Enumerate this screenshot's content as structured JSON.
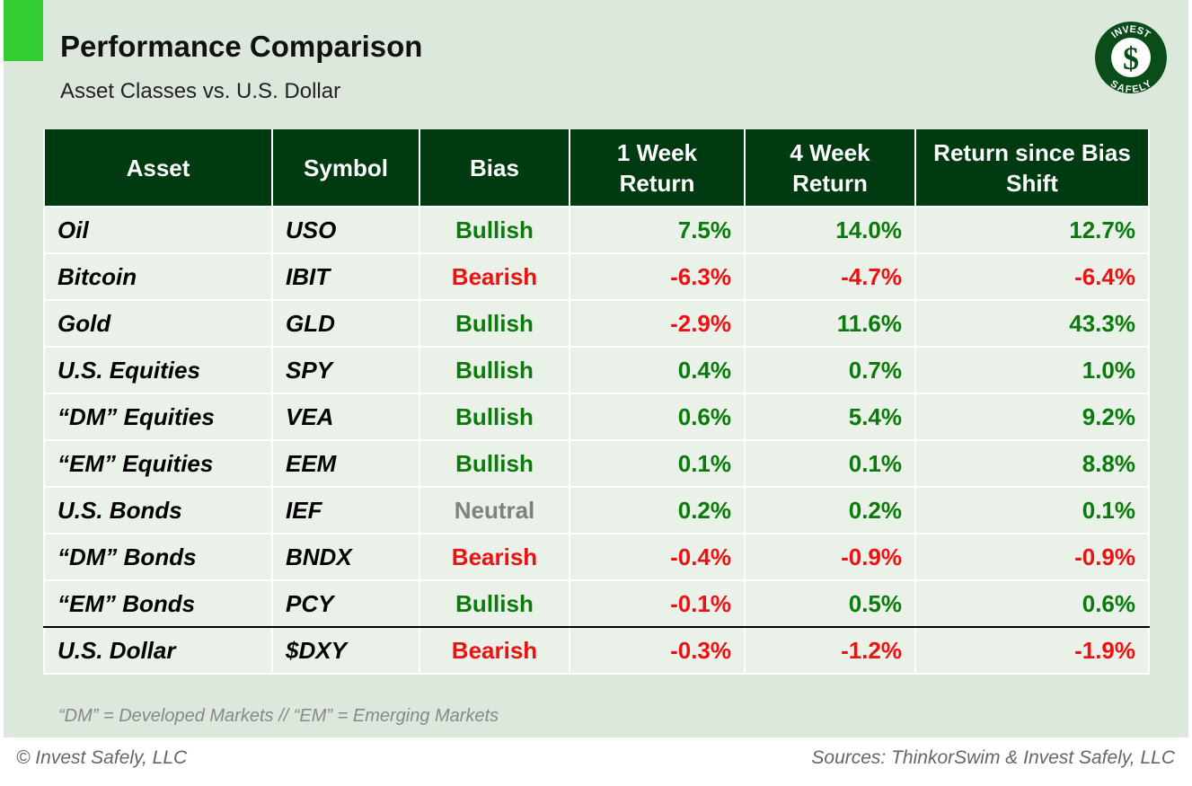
{
  "header": {
    "title": "Performance Comparison",
    "subtitle": "Asset Classes vs. U.S. Dollar"
  },
  "logo": {
    "top": "INVEST",
    "symbol": "$",
    "bottom": "SAFELY"
  },
  "table": {
    "columns": [
      "Asset",
      "Symbol",
      "Bias",
      "1 Week Return",
      "4 Week Return",
      "Return since Bias Shift"
    ],
    "positive_color": "#0a7a0a",
    "negative_color": "#ee1111",
    "rows": [
      {
        "asset": "Oil",
        "symbol": "USO",
        "bias": "Bullish",
        "bias_color": "#0a7a0a",
        "returns": [
          "7.5%",
          "14.0%",
          "12.7%"
        ]
      },
      {
        "asset": "Bitcoin",
        "symbol": "IBIT",
        "bias": "Bearish",
        "bias_color": "#ee1111",
        "returns": [
          "-6.3%",
          "-4.7%",
          "-6.4%"
        ]
      },
      {
        "asset": "Gold",
        "symbol": "GLD",
        "bias": "Bullish",
        "bias_color": "#0a7a0a",
        "returns": [
          "-2.9%",
          "11.6%",
          "43.3%"
        ]
      },
      {
        "asset": "U.S. Equities",
        "symbol": "SPY",
        "bias": "Bullish",
        "bias_color": "#0a7a0a",
        "returns": [
          "0.4%",
          "0.7%",
          "1.0%"
        ]
      },
      {
        "asset": "“DM” Equities",
        "symbol": "VEA",
        "bias": "Bullish",
        "bias_color": "#0a7a0a",
        "returns": [
          "0.6%",
          "5.4%",
          "9.2%"
        ]
      },
      {
        "asset": "“EM” Equities",
        "symbol": "EEM",
        "bias": "Bullish",
        "bias_color": "#0a7a0a",
        "returns": [
          "0.1%",
          "0.1%",
          "8.8%"
        ]
      },
      {
        "asset": "U.S. Bonds",
        "symbol": "IEF",
        "bias": "Neutral",
        "bias_color": "#808080",
        "returns": [
          "0.2%",
          "0.2%",
          "0.1%"
        ]
      },
      {
        "asset": "“DM” Bonds",
        "symbol": "BNDX",
        "bias": "Bearish",
        "bias_color": "#ee1111",
        "returns": [
          "-0.4%",
          "-0.9%",
          "-0.9%"
        ]
      },
      {
        "asset": "“EM” Bonds",
        "symbol": "PCY",
        "bias": "Bullish",
        "bias_color": "#0a7a0a",
        "returns": [
          "-0.1%",
          "0.5%",
          "0.6%"
        ]
      },
      {
        "asset": "U.S. Dollar",
        "symbol": "$DXY",
        "bias": "Bearish",
        "bias_color": "#ee1111",
        "returns": [
          "-0.3%",
          "-1.2%",
          "-1.9%"
        ]
      }
    ]
  },
  "footnote": "“DM” = Developed Markets // “EM” = Emerging Markets",
  "footer": {
    "left": "© Invest Safely, LLC",
    "right": "Sources: ThinkorSwim & Invest Safely, LLC"
  }
}
